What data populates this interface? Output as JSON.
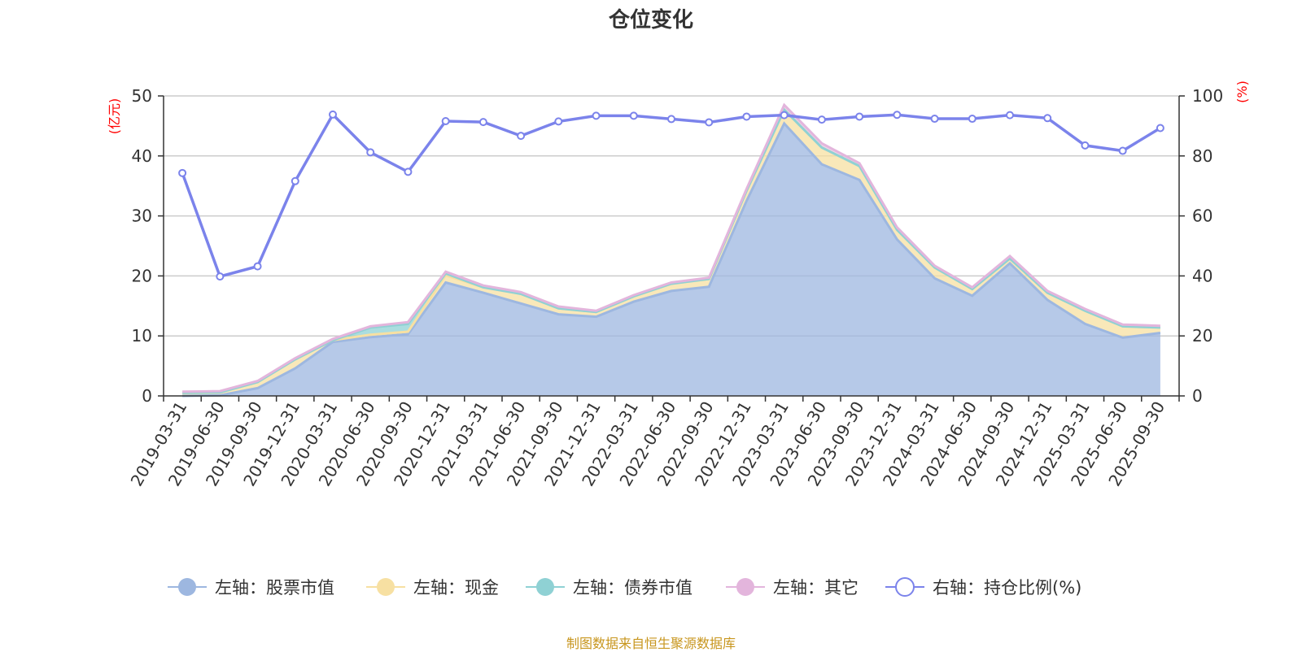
{
  "chart_data": {
    "type": "area",
    "title": "仓位变化",
    "left_axis_label": "(亿元)",
    "right_axis_label": "(%)",
    "left_ylim": [
      0,
      50
    ],
    "right_ylim": [
      0,
      100
    ],
    "left_ticks": [
      "0",
      "10",
      "20",
      "30",
      "40",
      "50"
    ],
    "right_ticks": [
      "0",
      "20",
      "40",
      "60",
      "80",
      "100"
    ],
    "categories": [
      "2019-03-31",
      "2019-06-30",
      "2019-09-30",
      "2019-12-31",
      "2020-03-31",
      "2020-06-30",
      "2020-09-30",
      "2020-12-31",
      "2021-03-31",
      "2021-06-30",
      "2021-09-30",
      "2021-12-31",
      "2022-03-31",
      "2022-06-30",
      "2022-09-30",
      "2022-12-31",
      "2023-03-31",
      "2023-06-30",
      "2023-09-30",
      "2023-12-31",
      "2024-03-31",
      "2024-06-30",
      "2024-09-30",
      "2024-12-31",
      "2025-03-31",
      "2025-06-30",
      "2025-09-30"
    ],
    "series": [
      {
        "name": "左轴：股票市值",
        "axis": "left",
        "color": "#9db7e0",
        "values": [
          0.0,
          0.1,
          1.3,
          4.6,
          9.0,
          9.8,
          10.3,
          18.9,
          17.2,
          15.4,
          13.6,
          13.2,
          15.7,
          17.5,
          18.2,
          32.5,
          45.4,
          38.6,
          36.0,
          26.1,
          19.6,
          16.7,
          22.1,
          16.0,
          12.0,
          9.7,
          10.5
        ]
      },
      {
        "name": "左轴：现金",
        "axis": "left",
        "color": "#f7e0a2",
        "values": [
          0.5,
          0.5,
          1.0,
          1.5,
          0.3,
          0.4,
          0.4,
          1.2,
          0.9,
          1.6,
          1.0,
          0.8,
          0.9,
          1.2,
          1.3,
          1.7,
          2.3,
          2.8,
          2.3,
          1.6,
          1.8,
          1.1,
          0.8,
          1.2,
          2.2,
          1.9,
          0.9
        ]
      },
      {
        "name": "左轴：债券市值",
        "axis": "left",
        "color": "#8fd1d4",
        "values": [
          0,
          0,
          0,
          0,
          0,
          1.2,
          1.3,
          0.3,
          0,
          0,
          0,
          0,
          0,
          0,
          0,
          0,
          0,
          0,
          0,
          0,
          0,
          0,
          0,
          0,
          0,
          0,
          0
        ]
      },
      {
        "name": "左轴：其它",
        "axis": "left",
        "color": "#e3b5dc",
        "values": [
          0.2,
          0.2,
          0.2,
          0.2,
          0.2,
          0.2,
          0.3,
          0.3,
          0.3,
          0.3,
          0.3,
          0.2,
          0.2,
          0.2,
          0.2,
          0.3,
          0.8,
          0.7,
          0.5,
          0.4,
          0.3,
          0.3,
          0.4,
          0.3,
          0.3,
          0.3,
          0.3
        ]
      },
      {
        "name": "右轴：持仓比例(%)",
        "axis": "right",
        "color": "#7b83eb",
        "values": [
          74.3,
          39.8,
          43.2,
          71.6,
          93.8,
          81.2,
          74.7,
          91.6,
          91.3,
          86.7,
          91.5,
          93.4,
          93.4,
          92.3,
          91.2,
          93.1,
          93.6,
          92.1,
          93.1,
          93.7,
          92.4,
          92.4,
          93.6,
          92.6,
          83.5,
          81.7,
          89.3
        ]
      }
    ]
  },
  "footer": {
    "source": "制图数据来自恒生聚源数据库"
  }
}
